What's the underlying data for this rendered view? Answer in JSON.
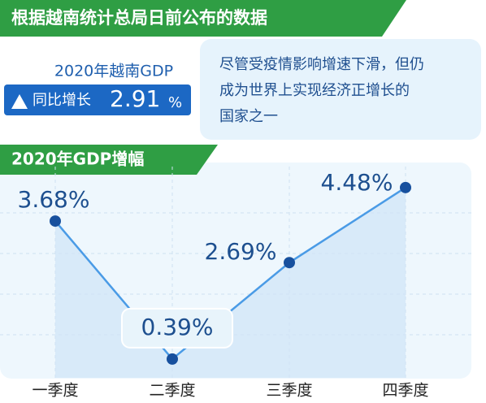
{
  "header": {
    "title": "根据越南统计总局日前公布的数据"
  },
  "summary": {
    "label": "2020年越南GDP",
    "change_label": "同比增长",
    "value": 2.91,
    "unit": "%"
  },
  "note": {
    "lines": [
      "尽管受疫情影响增速下滑，但仍",
      "成为世界上实现经济正增长的",
      "国家之一"
    ]
  },
  "chart_data": {
    "type": "line",
    "title": "2020年GDP增幅",
    "categories": [
      "一季度",
      "二季度",
      "三季度",
      "四季度"
    ],
    "values": [
      3.68,
      0.39,
      2.69,
      4.48
    ],
    "value_labels": [
      "3.68%",
      "0.39%",
      "2.69%",
      "4.48%"
    ],
    "ylim": [
      0,
      5
    ],
    "grid": true,
    "color": "#4a9be6",
    "marker_color": "#17509e"
  }
}
